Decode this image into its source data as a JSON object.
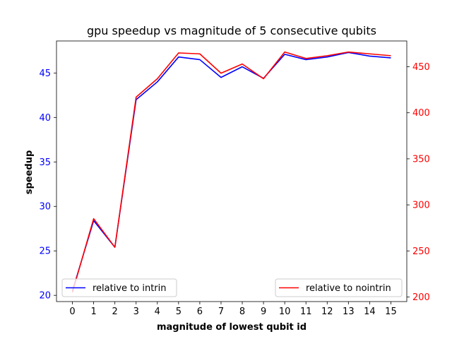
{
  "chart_data": {
    "type": "line",
    "title": "gpu speedup vs magnitude of 5 consecutive qubits",
    "xlabel": "magnitude of lowest qubit id",
    "ylabel": "speedup",
    "ylabel_right": "",
    "x": [
      0,
      1,
      2,
      3,
      4,
      5,
      6,
      7,
      8,
      9,
      10,
      11,
      12,
      13,
      14,
      15
    ],
    "xticks": [
      "0",
      "1",
      "2",
      "3",
      "4",
      "5",
      "6",
      "7",
      "8",
      "9",
      "10",
      "11",
      "12",
      "13",
      "14",
      "15"
    ],
    "xlim": [
      -0.75,
      15.75
    ],
    "left_axis": {
      "ylim": [
        19.3,
        48.6
      ],
      "ticks": [
        20,
        25,
        30,
        35,
        40,
        45
      ],
      "color": "#0000ff"
    },
    "right_axis": {
      "ylim": [
        195,
        478
      ],
      "ticks": [
        200,
        250,
        300,
        350,
        400,
        450
      ],
      "color": "#ff0000"
    },
    "series": [
      {
        "name": "relative to intrin",
        "axis": "left",
        "color": "#0000ff",
        "values": [
          20.5,
          28.4,
          25.4,
          42.0,
          44.0,
          46.8,
          46.5,
          44.5,
          45.7,
          44.4,
          47.1,
          46.5,
          46.8,
          47.3,
          46.9,
          46.7
        ]
      },
      {
        "name": "relative to nointrin",
        "axis": "right",
        "color": "#ff0000",
        "values": [
          205,
          285,
          254,
          417,
          437,
          465,
          464,
          443,
          453,
          437,
          466,
          459,
          462,
          466,
          464,
          462
        ]
      }
    ],
    "legend": [
      {
        "label": "relative to intrin",
        "placement": "lower-left",
        "color": "#0000ff"
      },
      {
        "label": "relative to nointrin",
        "placement": "lower-right",
        "color": "#ff0000"
      }
    ],
    "grid": false
  }
}
